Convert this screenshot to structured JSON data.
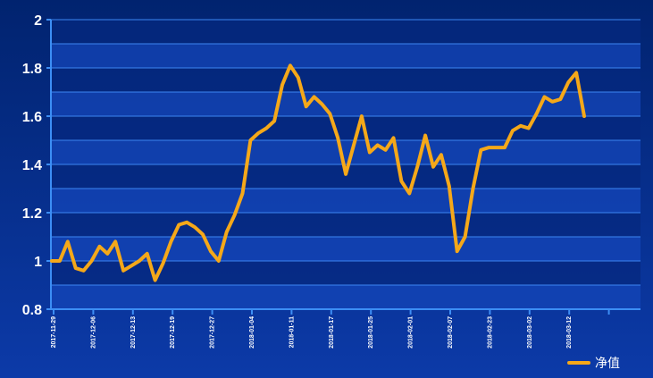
{
  "chart_data": {
    "type": "line",
    "series": [
      {
        "name": "净值",
        "values": [
          1.0,
          1.0,
          1.08,
          0.97,
          0.96,
          1.0,
          1.06,
          1.03,
          1.08,
          0.96,
          0.98,
          1.0,
          1.03,
          0.92,
          0.99,
          1.08,
          1.15,
          1.16,
          1.14,
          1.11,
          1.04,
          1.0,
          1.12,
          1.19,
          1.28,
          1.5,
          1.53,
          1.55,
          1.58,
          1.73,
          1.81,
          1.76,
          1.64,
          1.68,
          1.65,
          1.61,
          1.51,
          1.36,
          1.48,
          1.6,
          1.45,
          1.48,
          1.46,
          1.51,
          1.33,
          1.28,
          1.39,
          1.52,
          1.39,
          1.44,
          1.31,
          1.04,
          1.1,
          1.3,
          1.46,
          1.47,
          1.47,
          1.47,
          1.54,
          1.56,
          1.55,
          1.61,
          1.68,
          1.66,
          1.67,
          1.74,
          1.78,
          1.6
        ]
      }
    ],
    "x_tick_labels": [
      "2017-11-29",
      "2017-12-06",
      "2017-12-13",
      "2017-12-19",
      "2017-12-27",
      "2018-01-04",
      "2018-01-11",
      "2018-01-17",
      "2018-01-25",
      "2018-02-01",
      "2018-02-07",
      "2018-02-23",
      "2018-03-02",
      "2018-03-12"
    ],
    "y_ticks": [
      "2",
      "1.8",
      "1.6",
      "1.4",
      "1.2",
      "1",
      "0.8"
    ],
    "ylim": [
      0.8,
      2.0
    ],
    "grid": true,
    "legend_position": "bottom-right",
    "colors": {
      "background_top": "#01236f",
      "background_bottom": "#0c3aa8",
      "band_dark": "#05287f",
      "band_light": "#1446b8",
      "grid_line": "#3d86f2",
      "axis": "#3c8ef5",
      "line": "#f5a819",
      "text": "#ffffff"
    }
  }
}
